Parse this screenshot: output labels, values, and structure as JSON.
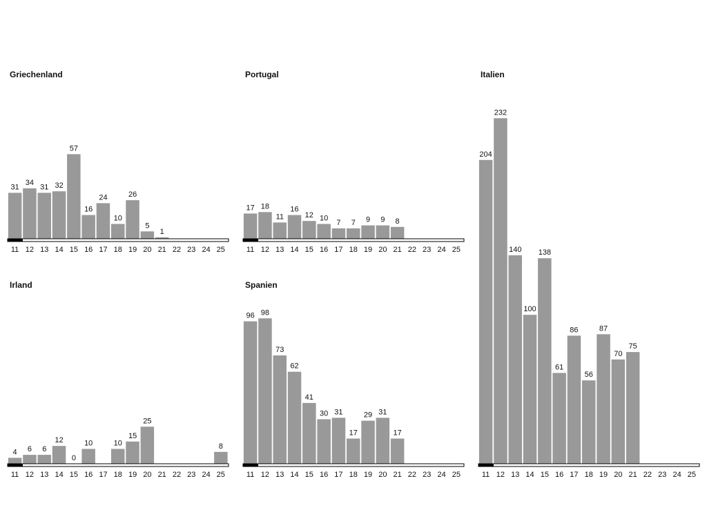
{
  "chart_data": [
    {
      "type": "bar",
      "title": "Griechenland",
      "categories": [
        "11",
        "12",
        "13",
        "14",
        "15",
        "16",
        "17",
        "18",
        "19",
        "20",
        "21",
        "22",
        "23",
        "24",
        "25"
      ],
      "values": [
        31,
        34,
        31,
        32,
        57,
        16,
        24,
        10,
        26,
        5,
        1,
        null,
        null,
        null,
        null
      ],
      "ylim": [
        0,
        232
      ],
      "bar_color": "#999999",
      "legend": "none",
      "grid": false
    },
    {
      "type": "bar",
      "title": "Portugal",
      "categories": [
        "11",
        "12",
        "13",
        "14",
        "15",
        "16",
        "17",
        "18",
        "19",
        "20",
        "21",
        "22",
        "23",
        "24",
        "25"
      ],
      "values": [
        17,
        18,
        11,
        16,
        12,
        10,
        7,
        7,
        9,
        9,
        8,
        null,
        null,
        null,
        null
      ],
      "ylim": [
        0,
        232
      ],
      "bar_color": "#999999",
      "legend": "none",
      "grid": false
    },
    {
      "type": "bar",
      "title": "Irland",
      "categories": [
        "11",
        "12",
        "13",
        "14",
        "15",
        "16",
        "17",
        "18",
        "19",
        "20",
        "21",
        "22",
        "23",
        "24",
        "25"
      ],
      "values": [
        4,
        6,
        6,
        12,
        0,
        10,
        null,
        10,
        15,
        25,
        null,
        null,
        null,
        null,
        8
      ],
      "ylim": [
        0,
        232
      ],
      "bar_color": "#999999",
      "legend": "none",
      "grid": false
    },
    {
      "type": "bar",
      "title": "Spanien",
      "categories": [
        "11",
        "12",
        "13",
        "14",
        "15",
        "16",
        "17",
        "18",
        "19",
        "20",
        "21",
        "22",
        "23",
        "24",
        "25"
      ],
      "values": [
        96,
        98,
        73,
        62,
        41,
        30,
        31,
        17,
        29,
        31,
        17,
        null,
        null,
        null,
        null
      ],
      "ylim": [
        0,
        232
      ],
      "bar_color": "#999999",
      "legend": "none",
      "grid": false
    },
    {
      "type": "bar",
      "title": "Italien",
      "categories": [
        "11",
        "12",
        "13",
        "14",
        "15",
        "16",
        "17",
        "18",
        "19",
        "20",
        "21",
        "22",
        "23",
        "24",
        "25"
      ],
      "values": [
        204,
        232,
        140,
        100,
        138,
        61,
        86,
        56,
        87,
        70,
        75,
        null,
        null,
        null,
        null
      ],
      "ylim": [
        0,
        232
      ],
      "bar_color": "#999999",
      "legend": "none",
      "grid": false
    }
  ]
}
